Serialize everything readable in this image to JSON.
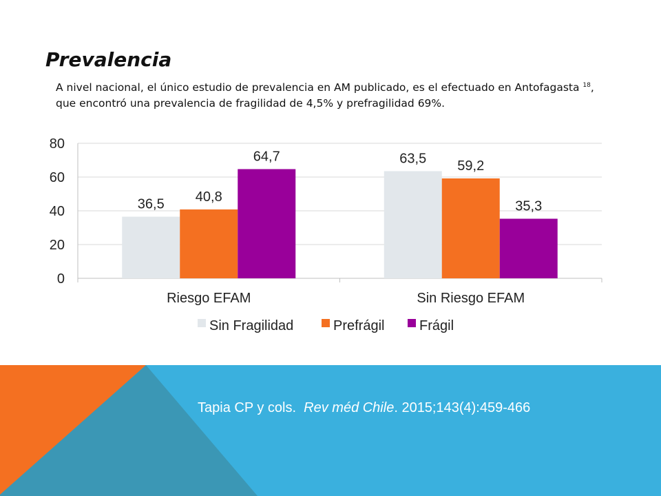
{
  "slide": {
    "title": "Prevalencia",
    "body_part1": "A nivel nacional, el único estudio de prevalencia en AM publicado, es el efectuado en Antofagasta ",
    "body_superscript": "18",
    "body_part2": ", que encontró una prevalencia de fragilidad de 4,5% y prefragilidad 69%.",
    "citation_authors": "Tapia CP y cols.",
    "citation_journal": "Rev méd Chile",
    "citation_details": ". 2015;143(4):459-466",
    "colors": {
      "footer_blue": "#3ab0de",
      "footer_orange": "#f47021",
      "footer_dark": "#3b97b5"
    }
  },
  "chart_data": {
    "type": "bar",
    "title": "",
    "xlabel": "",
    "ylabel": "",
    "categories": [
      "Riesgo EFAM",
      "Sin Riesgo EFAM"
    ],
    "series": [
      {
        "name": "Sin Fragilidad",
        "values": [
          36.5,
          63.5
        ],
        "labels": [
          "36,5",
          "63,5"
        ],
        "color": "#e2e7eb"
      },
      {
        "name": "Prefrágil",
        "values": [
          40.8,
          59.2
        ],
        "labels": [
          "40,8",
          "59,2"
        ],
        "color": "#f47021"
      },
      {
        "name": "Frágil",
        "values": [
          64.7,
          35.3
        ],
        "labels": [
          "64,7",
          "35,3"
        ],
        "color": "#99009a"
      }
    ],
    "ylim": [
      0,
      80
    ],
    "yticks": [
      "0",
      "20",
      "40",
      "60",
      "80"
    ],
    "grid": true,
    "legend_position": "bottom"
  }
}
